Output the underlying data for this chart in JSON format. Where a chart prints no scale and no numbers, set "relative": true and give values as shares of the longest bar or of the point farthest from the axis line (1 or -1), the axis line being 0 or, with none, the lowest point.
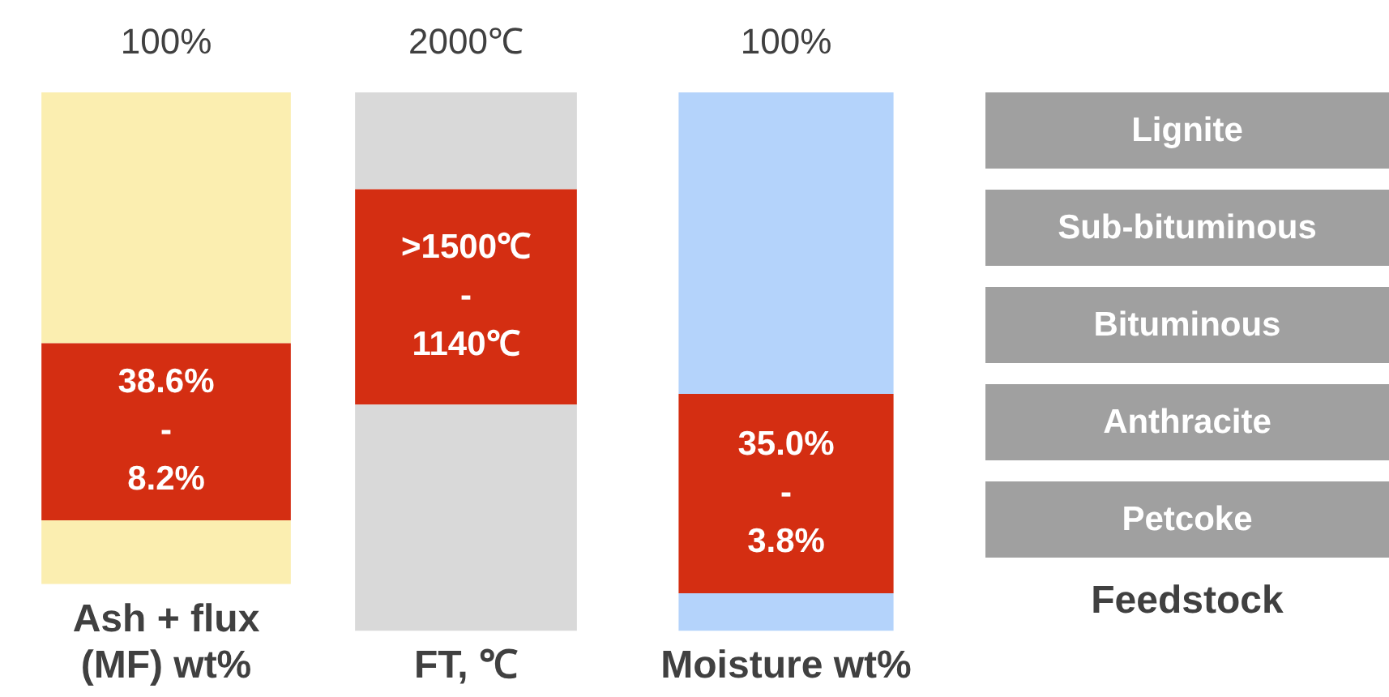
{
  "chart_data": [
    {
      "type": "bar",
      "relative": true,
      "stacked": true,
      "categories": [
        null
      ],
      "xlabel": "Ash + flux\n(MF) wt%",
      "annotations": [
        "100%",
        "38.6%\n-\n8.2%"
      ],
      "series": [
        {
          "color": "#fbeeb0",
          "values": [
            0.13
          ]
        },
        {
          "color": "#d42e12",
          "values": [
            0.36
          ]
        },
        {
          "color": "#fbeeb0",
          "values": [
            0.51
          ]
        }
      ]
    },
    {
      "type": "bar",
      "relative": true,
      "stacked": true,
      "categories": [
        null
      ],
      "xlabel": "FT, ℃",
      "annotations": [
        "2000℃",
        ">1500℃\n-\n1140℃"
      ],
      "series": [
        {
          "color": "#d9d9d9",
          "values": [
            0.42
          ]
        },
        {
          "color": "#d42e12",
          "values": [
            0.4
          ]
        },
        {
          "color": "#d9d9d9",
          "values": [
            0.18
          ]
        }
      ]
    },
    {
      "type": "bar",
      "relative": true,
      "stacked": true,
      "categories": [
        null
      ],
      "xlabel": "Moisture wt%",
      "annotations": [
        "100%",
        "35.0%\n-\n3.8%"
      ],
      "series": [
        {
          "color": "#b4d3fb",
          "values": [
            0.07
          ]
        },
        {
          "color": "#d42e12",
          "values": [
            0.37
          ]
        },
        {
          "color": "#b4d3fb",
          "values": [
            0.56
          ]
        }
      ]
    },
    {
      "type": "other",
      "xlabel": "Feedstock",
      "color": "#a0a0a0",
      "categories": [
        "Lignite",
        "Sub-bituminous",
        "Bituminous",
        "Anthracite",
        "Petcoke"
      ]
    }
  ]
}
